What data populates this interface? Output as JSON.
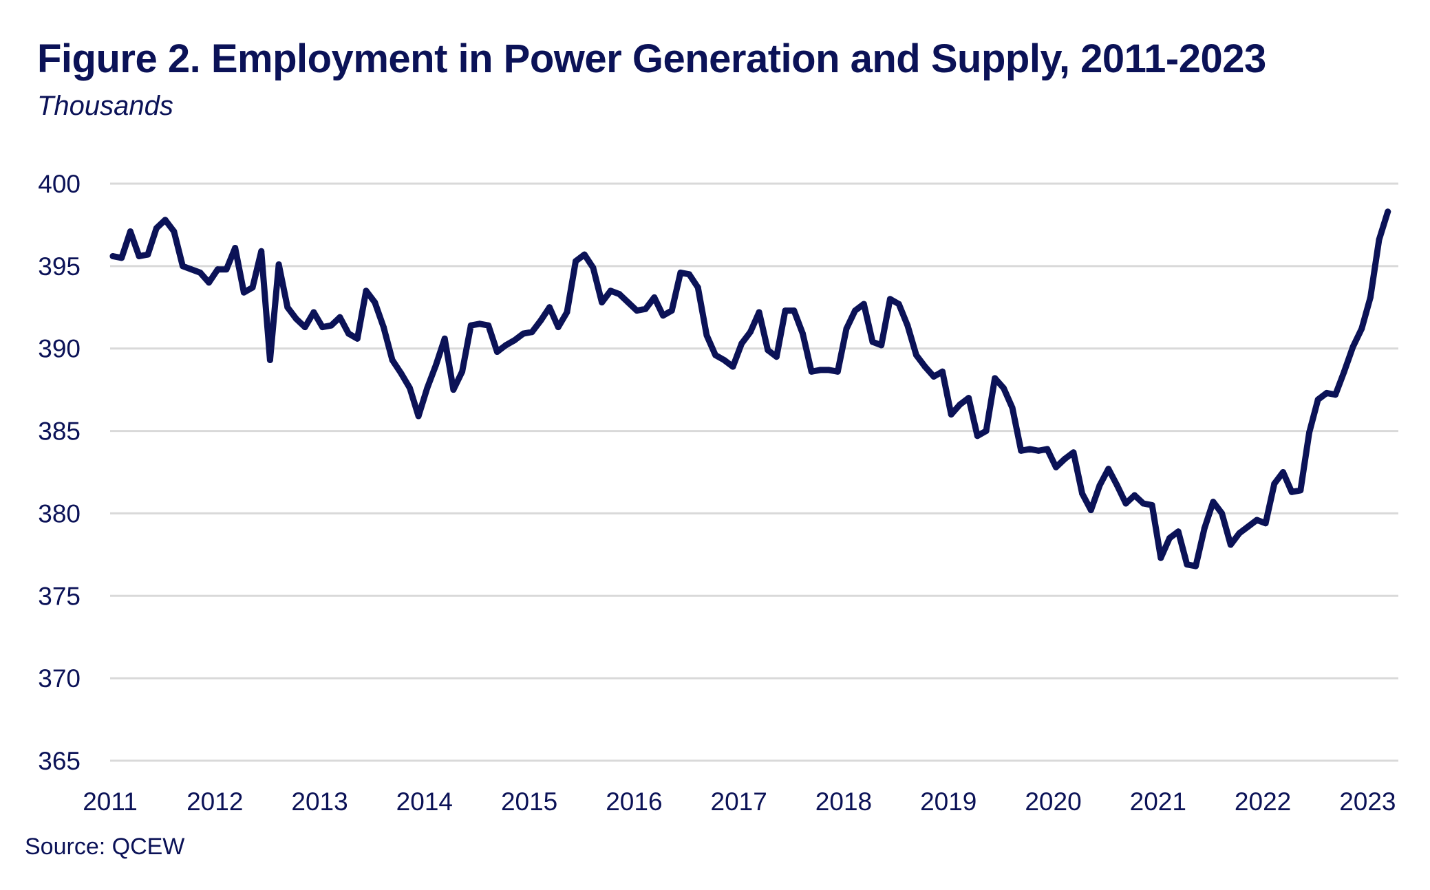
{
  "chart_data": {
    "type": "line",
    "title": "Figure 2. Employment in Power Generation and Supply, 2011-2023",
    "subtitle": "Thousands",
    "source": "Source: QCEW",
    "xlabel": "",
    "ylabel": "Thousands",
    "ylim": [
      365,
      400
    ],
    "yticks": [
      400,
      395,
      390,
      385,
      380,
      375,
      370,
      365
    ],
    "xticks": [
      "2011",
      "2012",
      "2013",
      "2014",
      "2015",
      "2016",
      "2017",
      "2018",
      "2019",
      "2020",
      "2021",
      "2022",
      "2023"
    ],
    "x_start": "2011-01",
    "x_frequency": "monthly",
    "grid": true,
    "legend": "none",
    "line_color": "#0b1257",
    "series": [
      {
        "name": "Employment in Power Generation and Supply",
        "values": [
          395.6,
          395.5,
          397.1,
          395.6,
          395.7,
          397.3,
          397.8,
          397.1,
          395.0,
          394.8,
          394.6,
          394.0,
          394.8,
          394.8,
          396.1,
          393.4,
          393.7,
          395.9,
          389.3,
          395.1,
          392.5,
          391.8,
          391.3,
          392.2,
          391.3,
          391.4,
          391.9,
          390.9,
          390.6,
          393.5,
          392.8,
          391.3,
          389.3,
          388.5,
          387.6,
          385.9,
          387.6,
          389.0,
          390.6,
          387.5,
          388.6,
          391.4,
          391.5,
          391.4,
          389.8,
          390.2,
          390.5,
          390.9,
          391.0,
          391.7,
          392.5,
          391.3,
          392.2,
          395.3,
          395.7,
          394.9,
          392.8,
          393.5,
          393.3,
          392.8,
          392.3,
          392.4,
          393.1,
          392.0,
          392.3,
          394.6,
          394.5,
          393.7,
          390.8,
          389.6,
          389.3,
          388.9,
          390.3,
          391.0,
          392.2,
          389.9,
          389.5,
          392.3,
          392.3,
          390.9,
          388.6,
          388.7,
          388.7,
          388.6,
          391.2,
          392.3,
          392.7,
          390.4,
          390.2,
          393.0,
          392.7,
          391.4,
          389.6,
          388.9,
          388.3,
          388.6,
          386.0,
          386.6,
          387.0,
          384.7,
          385.0,
          388.2,
          387.6,
          386.4,
          383.8,
          383.9,
          383.8,
          383.9,
          382.8,
          383.3,
          383.7,
          381.2,
          380.2,
          381.7,
          382.7,
          381.7,
          380.6,
          381.1,
          380.6,
          380.5,
          377.3,
          378.5,
          378.9,
          376.9,
          376.8,
          379.1,
          380.7,
          380.0,
          378.1,
          378.8,
          379.2,
          379.6,
          379.4,
          381.8,
          382.5,
          381.3,
          381.4,
          384.9,
          386.9,
          387.3,
          387.2,
          388.6,
          390.1,
          391.2,
          393.1,
          396.6,
          398.3
        ]
      }
    ]
  }
}
